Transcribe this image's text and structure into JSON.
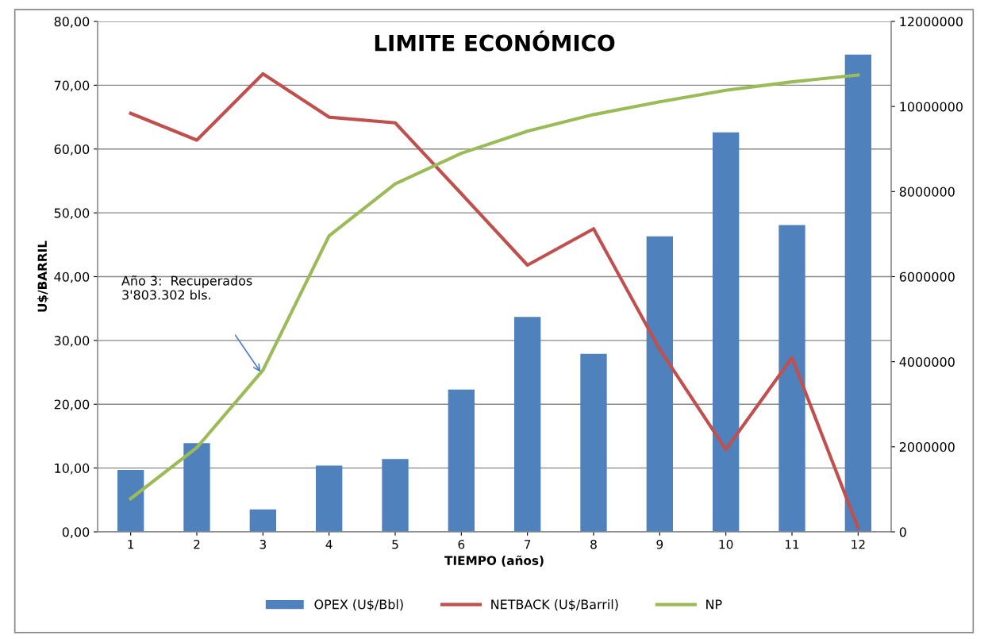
{
  "chart_data": {
    "type": "bar",
    "title": "LIMITE ECONÓMICO",
    "xlabel": "TIEMPO (años)",
    "ylabel": "U$/BARRIL",
    "categories": [
      "1",
      "2",
      "3",
      "4",
      "5",
      "6",
      "7",
      "8",
      "9",
      "10",
      "11",
      "12"
    ],
    "series": [
      {
        "name": "OPEX (U$/Bbl)",
        "color": "#4f81bd",
        "values": [
          9.7,
          13.9,
          3.5,
          10.4,
          11.4,
          22.3,
          33.7,
          27.9,
          46.3,
          62.6,
          48.1,
          74.8
        ]
      },
      {
        "name": "NETBACK (U$/Barril)",
        "type": "line",
        "color": "#c0504d",
        "values": [
          65.6,
          61.4,
          71.8,
          65.0,
          64.1,
          53.0,
          41.8,
          47.5,
          28.6,
          12.9,
          27.3,
          0.6
        ]
      },
      {
        "name": "NP",
        "type": "line",
        "axis": "y2",
        "color": "#9bbb59",
        "values": [
          780000,
          1980000,
          3800000,
          6960000,
          8180000,
          8900000,
          9420000,
          9810000,
          10110000,
          10380000,
          10580000,
          10740000
        ]
      }
    ],
    "ylim": [
      0,
      80
    ],
    "yticks": [
      {
        "value": 0,
        "label": "0,00"
      },
      {
        "value": 10,
        "label": "10,00"
      },
      {
        "value": 20,
        "label": "20,00"
      },
      {
        "value": 30,
        "label": "30,00"
      },
      {
        "value": 40,
        "label": "40,00"
      },
      {
        "value": 50,
        "label": "50,00"
      },
      {
        "value": 60,
        "label": "60,00"
      },
      {
        "value": 70,
        "label": "70,00"
      },
      {
        "value": 80,
        "label": "80,00"
      }
    ],
    "y2lim": [
      0,
      12000000
    ],
    "y2ticks": [
      0,
      2000000,
      4000000,
      6000000,
      8000000,
      10000000,
      12000000
    ],
    "grid": "y",
    "legend": "bottom",
    "marker": "none",
    "annotations": [
      "Año 3:  Recuperados\n3'803.302 bls."
    ]
  }
}
